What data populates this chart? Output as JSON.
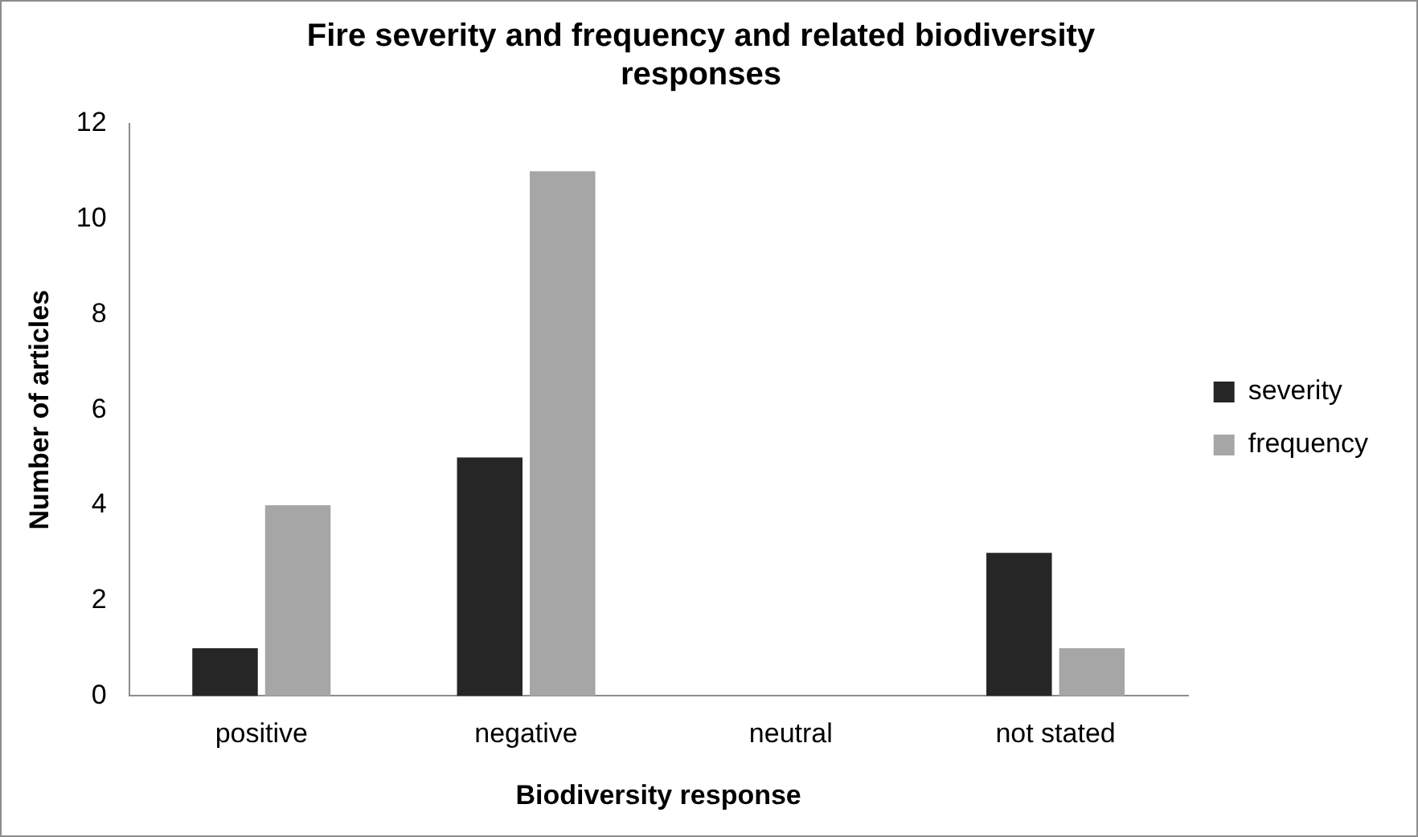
{
  "chart_data": {
    "type": "bar",
    "title": "Fire severity and frequency and related biodiversity responses",
    "xlabel": "Biodiversity response",
    "ylabel": "Number of articles",
    "categories": [
      "positive",
      "negative",
      "neutral",
      "not stated"
    ],
    "series": [
      {
        "name": "severity",
        "color": "#262626",
        "values": [
          1,
          5,
          0,
          3
        ]
      },
      {
        "name": "frequency",
        "color": "#a6a6a6",
        "values": [
          4,
          11,
          0,
          1
        ]
      }
    ],
    "ylim": [
      0,
      12
    ],
    "yticks": [
      0,
      2,
      4,
      6,
      8,
      10,
      12
    ],
    "grid": false,
    "legend": "right"
  }
}
